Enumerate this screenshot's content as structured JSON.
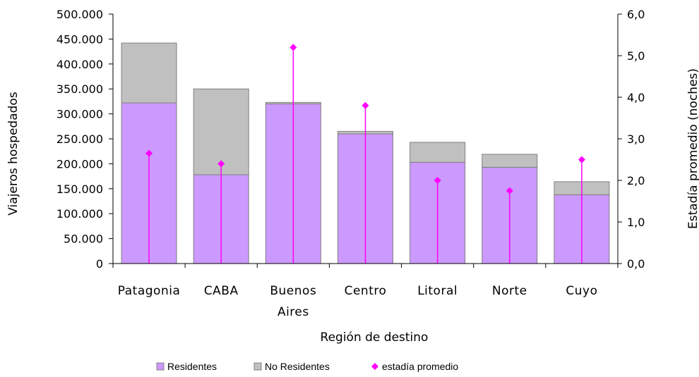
{
  "chart_data": {
    "type": "bar",
    "stacked": true,
    "categories": [
      "Patagonia",
      "CABA",
      "Buenos Aires",
      "Centro",
      "Litoral",
      "Norte",
      "Cuyo"
    ],
    "series": [
      {
        "name": "Residentes",
        "type": "bar",
        "axis": "left",
        "color": "#cc99ff",
        "values": [
          322000,
          178000,
          320000,
          260000,
          203000,
          193000,
          138000
        ]
      },
      {
        "name": "No Residentes",
        "type": "bar",
        "axis": "left",
        "color": "#c0c0c0",
        "values": [
          120000,
          172000,
          3000,
          5000,
          40000,
          26000,
          26000
        ]
      },
      {
        "name": "estadía promedio",
        "type": "points",
        "axis": "right",
        "color": "#ff00ff",
        "values": [
          2.65,
          2.4,
          5.2,
          3.8,
          2.0,
          1.75,
          2.5
        ]
      }
    ],
    "xlabel": "Región de destino",
    "ylabel": "Viajeros hospedados",
    "y2label": "Estadía promedio (noches)",
    "ylim": [
      0,
      500000
    ],
    "y2lim": [
      0,
      6
    ],
    "yticks": [
      "0",
      "50.000",
      "100.000",
      "150.000",
      "200.000",
      "250.000",
      "300.000",
      "350.000",
      "400.000",
      "450.000",
      "500.000"
    ],
    "y2ticks": [
      "0,0",
      "1,0",
      "2,0",
      "3,0",
      "4,0",
      "5,0",
      "6,0"
    ],
    "xticklabels": [
      [
        "Patagonia"
      ],
      [
        "CABA"
      ],
      [
        "Buenos",
        "Aires"
      ],
      [
        "Centro"
      ],
      [
        "Litoral"
      ],
      [
        "Norte"
      ],
      [
        "Cuyo"
      ]
    ],
    "legend": {
      "position": "bottom",
      "items": [
        "Residentes",
        "No Residentes",
        "estadía promedio"
      ]
    },
    "grid": false
  }
}
